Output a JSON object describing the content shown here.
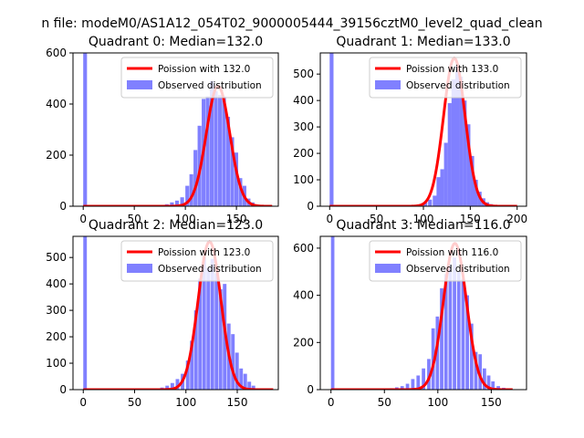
{
  "figure": {
    "suptitle": "n file: modeM0/AS1A12_054T02_9000005444_39156cztM0_level2_quad_clean"
  },
  "colors": {
    "histogram": "#8080ff",
    "poisson": "#ff0000",
    "axis": "#000000",
    "background": "#ffffff"
  },
  "chart_data": [
    {
      "type": "bar",
      "title": "Quadrant 0: Median=132.0",
      "xlabel": "",
      "ylabel": "",
      "xlim": [
        -10,
        191
      ],
      "ylim": [
        0,
        600
      ],
      "xticks": [
        0,
        50,
        100,
        150
      ],
      "yticks": [
        0,
        200,
        400,
        600
      ],
      "grid": false,
      "legend_position": "top-right",
      "bin_width": 3.7,
      "histogram": {
        "name": "Observed distribution",
        "x": [
          0,
          70,
          75,
          80,
          85,
          90,
          95,
          100,
          104,
          108,
          112,
          116,
          120,
          124,
          128,
          132,
          136,
          140,
          144,
          148,
          152,
          156,
          160,
          164,
          168,
          172
        ],
        "values": [
          600,
          4,
          5,
          8,
          15,
          22,
          35,
          80,
          125,
          220,
          315,
          420,
          430,
          490,
          450,
          435,
          430,
          350,
          270,
          210,
          110,
          80,
          30,
          15,
          6,
          3
        ]
      },
      "poisson": {
        "name": "Poission with 132.0",
        "mean": 132.0,
        "peak": 470,
        "xmax": 185
      }
    },
    {
      "type": "bar",
      "title": "Quadrant 1: Median=133.0",
      "xlabel": "",
      "ylabel": "",
      "xlim": [
        -10,
        210
      ],
      "ylim": [
        0,
        580
      ],
      "xticks": [
        0,
        50,
        100,
        150,
        200
      ],
      "yticks": [
        0,
        100,
        200,
        300,
        400,
        500
      ],
      "grid": false,
      "legend_position": "top-right",
      "bin_width": 4.1,
      "histogram": {
        "name": "Observed distribution",
        "x": [
          0,
          90,
          95,
          100,
          105,
          110,
          114,
          118,
          122,
          126,
          130,
          134,
          138,
          142,
          146,
          150,
          154,
          158,
          162,
          166,
          170,
          175
        ],
        "values": [
          580,
          5,
          8,
          15,
          25,
          40,
          110,
          140,
          240,
          390,
          480,
          530,
          490,
          400,
          310,
          190,
          100,
          55,
          30,
          15,
          8,
          4
        ]
      },
      "poisson": {
        "name": "Poission with 133.0",
        "mean": 133.0,
        "peak": 560,
        "xmax": 200
      }
    },
    {
      "type": "bar",
      "title": "Quadrant 2: Median=123.0",
      "xlabel": "",
      "ylabel": "",
      "xlim": [
        -10,
        190
      ],
      "ylim": [
        0,
        580
      ],
      "xticks": [
        0,
        50,
        100,
        150
      ],
      "yticks": [
        0,
        100,
        200,
        300,
        400,
        500
      ],
      "grid": false,
      "legend_position": "top-right",
      "bin_width": 3.5,
      "histogram": {
        "name": "Observed distribution",
        "x": [
          0,
          70,
          75,
          80,
          85,
          90,
          95,
          100,
          104,
          108,
          112,
          116,
          120,
          124,
          128,
          132,
          136,
          140,
          144,
          148,
          152,
          156,
          160,
          164
        ],
        "values": [
          580,
          5,
          8,
          15,
          25,
          40,
          60,
          110,
          185,
          300,
          420,
          500,
          460,
          495,
          440,
          380,
          400,
          250,
          210,
          140,
          80,
          60,
          30,
          15
        ]
      },
      "poisson": {
        "name": "Poission with 123.0",
        "mean": 123.0,
        "peak": 560,
        "xmax": 185
      }
    },
    {
      "type": "bar",
      "title": "Quadrant 3: Median=116.0",
      "xlabel": "",
      "ylabel": "",
      "xlim": [
        -10,
        183
      ],
      "ylim": [
        0,
        650
      ],
      "xticks": [
        0,
        50,
        100,
        150
      ],
      "yticks": [
        0,
        200,
        400,
        600
      ],
      "grid": false,
      "legend_position": "top-right",
      "bin_width": 3.2,
      "histogram": {
        "name": "Observed distribution",
        "x": [
          0,
          50,
          55,
          60,
          65,
          70,
          75,
          80,
          85,
          90,
          94,
          98,
          102,
          106,
          110,
          114,
          118,
          122,
          126,
          130,
          134,
          138,
          142,
          146,
          150,
          155,
          160
        ],
        "values": [
          650,
          4,
          6,
          10,
          15,
          25,
          45,
          60,
          90,
          130,
          260,
          310,
          430,
          490,
          530,
          560,
          500,
          470,
          400,
          280,
          160,
          150,
          90,
          60,
          35,
          15,
          8
        ]
      },
      "poisson": {
        "name": "Poission with 116.0",
        "mean": 116.0,
        "peak": 620,
        "xmax": 170
      }
    }
  ]
}
